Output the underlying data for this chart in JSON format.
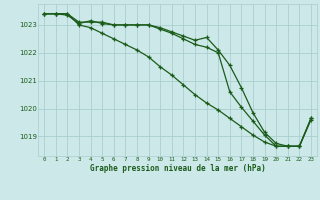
{
  "x": [
    0,
    1,
    2,
    3,
    4,
    5,
    6,
    7,
    8,
    9,
    10,
    11,
    12,
    13,
    14,
    15,
    16,
    17,
    18,
    19,
    20,
    21,
    22,
    23
  ],
  "line1": [
    1023.4,
    1023.4,
    1023.35,
    1023.05,
    1023.15,
    1023.05,
    1023.0,
    1023.0,
    1023.0,
    1023.0,
    1022.9,
    1022.75,
    1022.6,
    1022.45,
    1022.55,
    1022.1,
    1021.55,
    1020.75,
    1019.85,
    1019.15,
    1018.75,
    1018.65,
    1018.65,
    1019.6
  ],
  "line2": [
    1023.4,
    1023.4,
    1023.4,
    1023.1,
    1023.1,
    1023.1,
    1023.0,
    1023.0,
    1023.0,
    1023.0,
    1022.85,
    1022.7,
    1022.5,
    1022.3,
    1022.2,
    1022.0,
    1020.6,
    1020.05,
    1019.55,
    1019.05,
    1018.65,
    1018.65,
    1018.65,
    1019.65
  ],
  "line3": [
    1023.4,
    1023.4,
    1023.4,
    1023.0,
    1022.9,
    1022.7,
    1022.5,
    1022.3,
    1022.1,
    1021.85,
    1021.5,
    1021.2,
    1020.85,
    1020.5,
    1020.2,
    1019.95,
    1019.65,
    1019.35,
    1019.05,
    1018.8,
    1018.65,
    1018.65,
    1018.65,
    1019.65
  ],
  "xlabel": "Graphe pression niveau de la mer (hPa)",
  "ylim": [
    1018.3,
    1023.75
  ],
  "xlim": [
    -0.5,
    23.5
  ],
  "bg_color": "#cce8e8",
  "grid_color": "#aacece",
  "line_color": "#1a5c1a",
  "ylabel_ticks": [
    1019,
    1020,
    1021,
    1022,
    1023
  ],
  "xticks": [
    0,
    1,
    2,
    3,
    4,
    5,
    6,
    7,
    8,
    9,
    10,
    11,
    12,
    13,
    14,
    15,
    16,
    17,
    18,
    19,
    20,
    21,
    22,
    23
  ]
}
